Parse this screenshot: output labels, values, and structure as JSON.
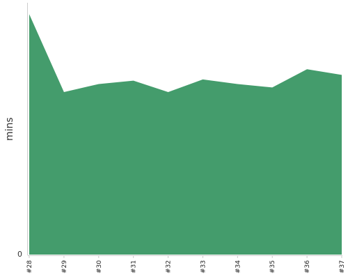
{
  "chart_data": {
    "type": "area",
    "categories": [
      "#28",
      "#29",
      "#30",
      "#31",
      "#32",
      "#33",
      "#34",
      "#35",
      "#36",
      "#37"
    ],
    "series": [
      {
        "values": [
          105,
          71,
          74.5,
          76,
          71,
          76.5,
          74.5,
          73,
          81,
          78.5
        ],
        "color": "#449c6c"
      }
    ],
    "xlabel": "",
    "ylabel": "mins",
    "yticks": [
      "0"
    ],
    "ylim": [
      0,
      110
    ],
    "grid": false,
    "legend": "none"
  }
}
